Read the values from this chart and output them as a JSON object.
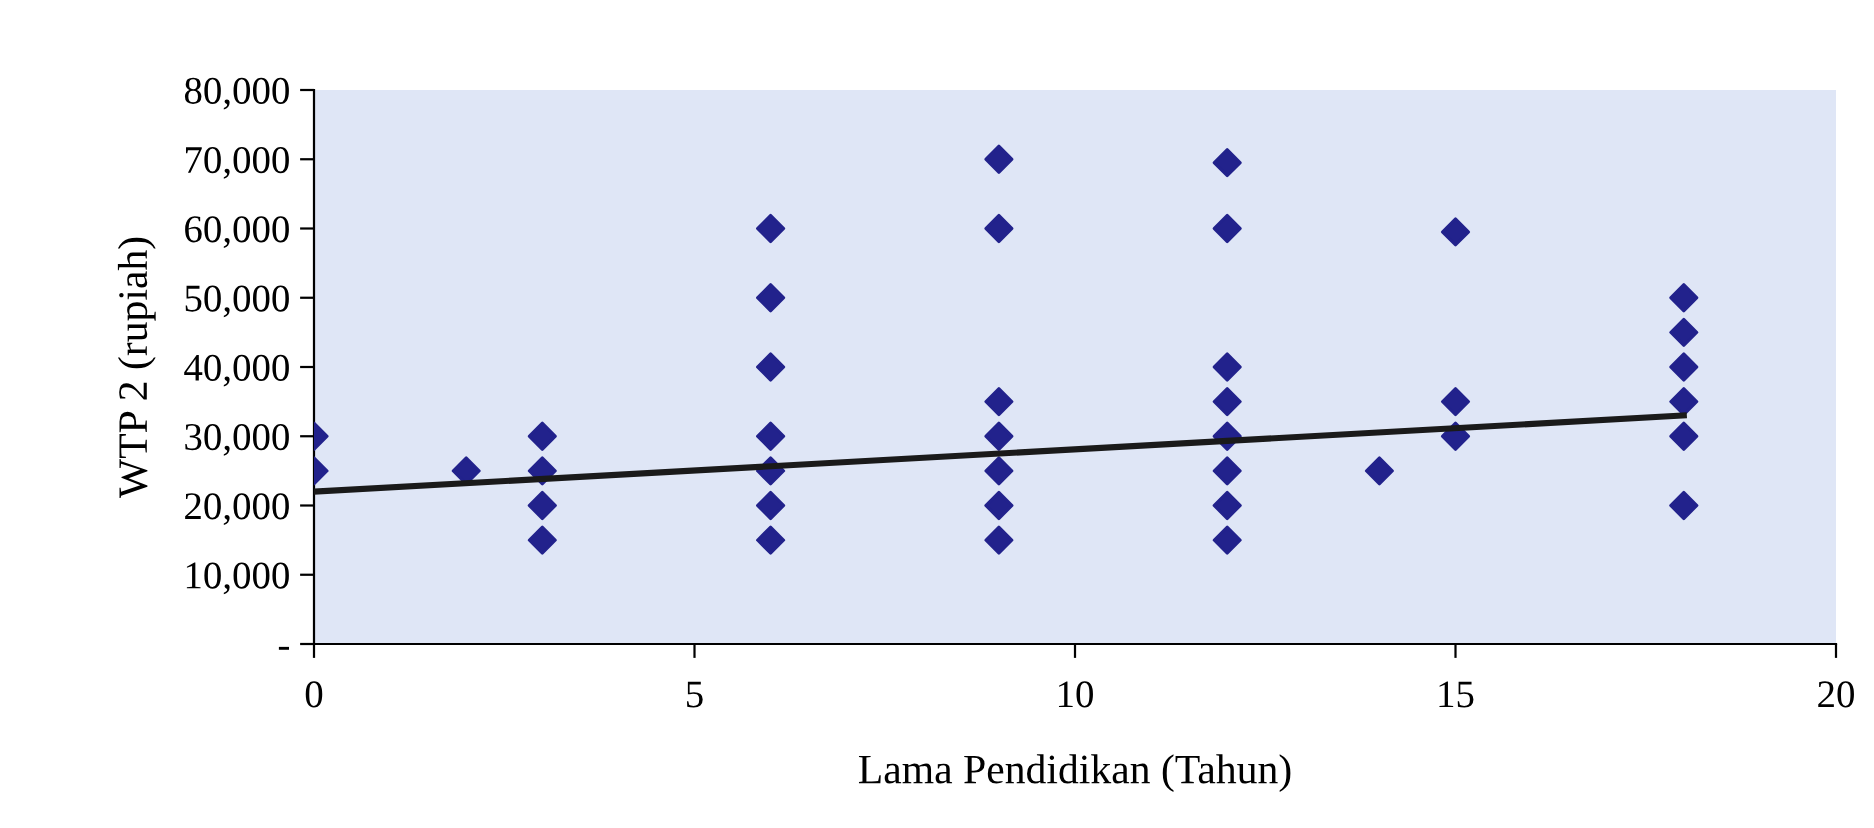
{
  "chart_data": {
    "type": "scatter",
    "xlabel": "Lama Pendidikan (Tahun)",
    "ylabel": "WTP 2 (rupiah)",
    "xlim": [
      0,
      20
    ],
    "xticks": [
      0,
      5,
      10,
      15,
      20
    ],
    "ylim": [
      0,
      80000
    ],
    "yticks": [
      {
        "value": 0,
        "label": "-"
      },
      {
        "value": 10000,
        "label": "10,000"
      },
      {
        "value": 20000,
        "label": "20,000"
      },
      {
        "value": 30000,
        "label": "30,000"
      },
      {
        "value": 40000,
        "label": "40,000"
      },
      {
        "value": 50000,
        "label": "50,000"
      },
      {
        "value": 60000,
        "label": "60,000"
      },
      {
        "value": 70000,
        "label": "70,000"
      },
      {
        "value": 80000,
        "label": "80,000"
      }
    ],
    "grid": false,
    "marker": "diamond",
    "series": [
      {
        "color": "#22228c",
        "x": [
          0,
          0,
          2,
          3,
          3,
          3,
          3,
          6,
          6,
          6,
          6,
          6,
          6,
          6,
          9,
          9,
          9,
          9,
          9,
          9,
          9,
          12,
          12,
          12,
          12,
          12,
          12,
          12,
          12,
          14,
          15,
          15,
          15,
          18,
          18,
          18,
          18,
          18,
          18
        ],
        "values": [
          30000,
          25000,
          25000,
          30000,
          25000,
          20000,
          15000,
          60000,
          50000,
          40000,
          30000,
          25000,
          20000,
          15000,
          70000,
          60000,
          35000,
          30000,
          25000,
          20000,
          15000,
          69500,
          60000,
          40000,
          35000,
          30000,
          25000,
          20000,
          15000,
          25000,
          59500,
          35000,
          30000,
          50000,
          45000,
          40000,
          35000,
          30000,
          20000
        ]
      },
      {
        "type": "line",
        "color": "#1a1a1a",
        "marker": "none",
        "x": [
          0,
          18
        ],
        "values": [
          22000,
          33000
        ]
      }
    ]
  }
}
